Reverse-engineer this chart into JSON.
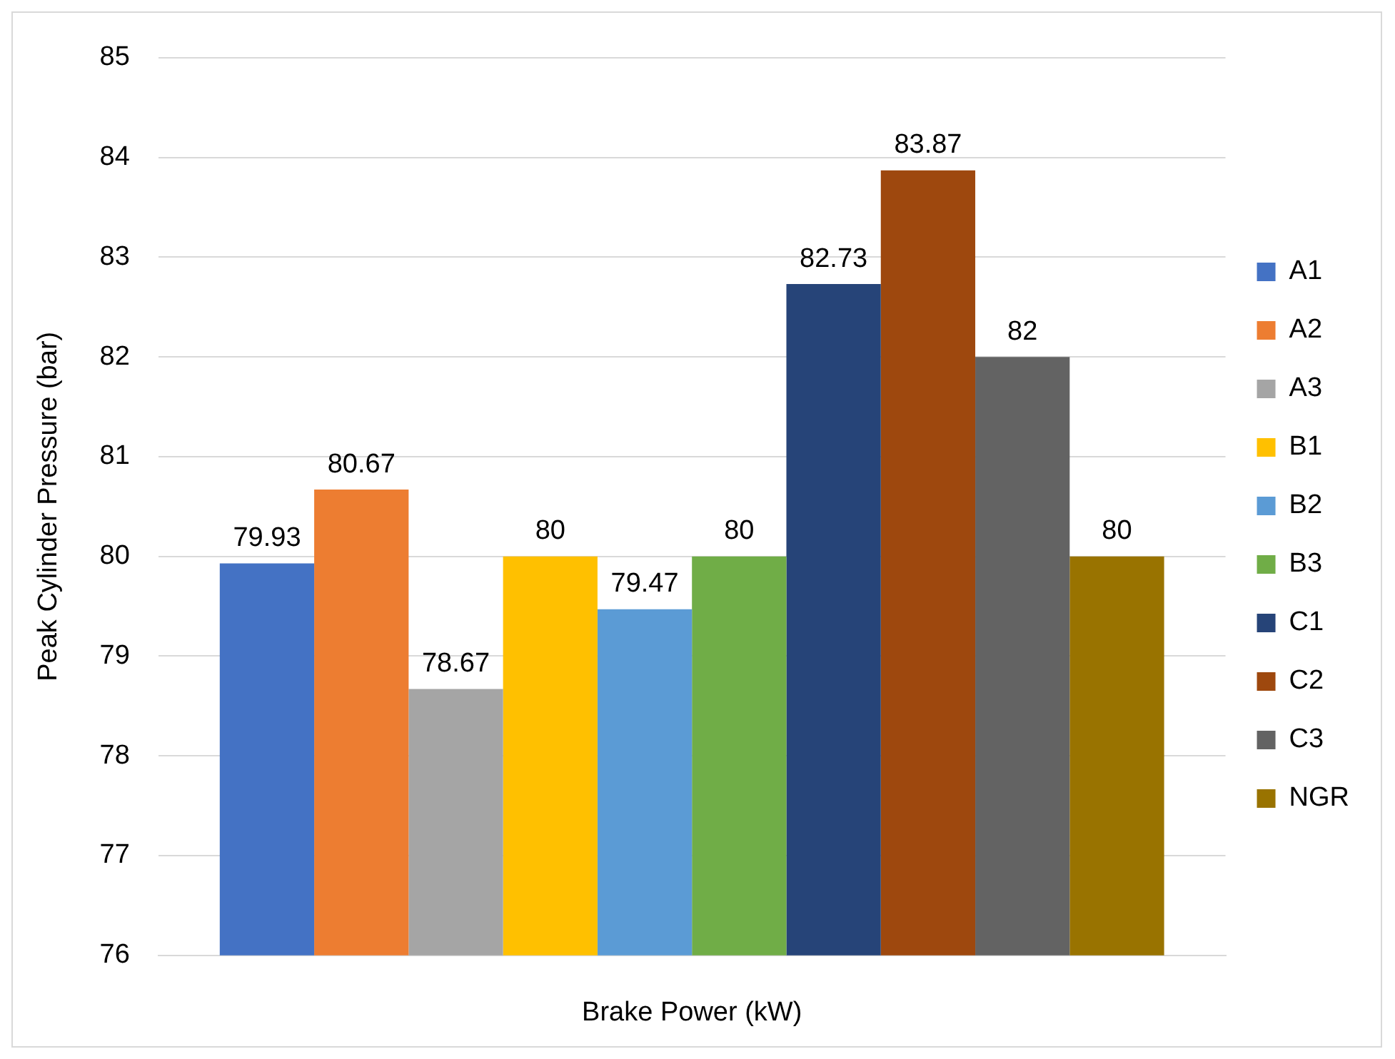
{
  "chart_data": {
    "type": "bar",
    "xlabel": "Brake Power (kW)",
    "ylabel": "Peak Cylinder Pressure (bar)",
    "categories": [
      null
    ],
    "series": [
      {
        "name": "A1",
        "color": "#4472c4",
        "values": [
          79.93
        ]
      },
      {
        "name": "A2",
        "color": "#ed7d31",
        "values": [
          80.67
        ]
      },
      {
        "name": "A3",
        "color": "#a5a5a5",
        "values": [
          78.67
        ]
      },
      {
        "name": "B1",
        "color": "#ffc000",
        "values": [
          80
        ]
      },
      {
        "name": "B2",
        "color": "#5b9bd5",
        "values": [
          79.47
        ]
      },
      {
        "name": "B3",
        "color": "#70ad47",
        "values": [
          80
        ]
      },
      {
        "name": "C1",
        "color": "#264478",
        "values": [
          82.73
        ]
      },
      {
        "name": "C2",
        "color": "#9e480e",
        "values": [
          83.87
        ]
      },
      {
        "name": "C3",
        "color": "#636363",
        "values": [
          82
        ]
      },
      {
        "name": "NGR",
        "color": "#997300",
        "values": [
          80
        ]
      }
    ],
    "ylim": [
      76,
      85
    ],
    "yticks": [
      76,
      77,
      78,
      79,
      80,
      81,
      82,
      83,
      84,
      85
    ],
    "grid": "y",
    "legend": "right",
    "data_labels": true
  }
}
